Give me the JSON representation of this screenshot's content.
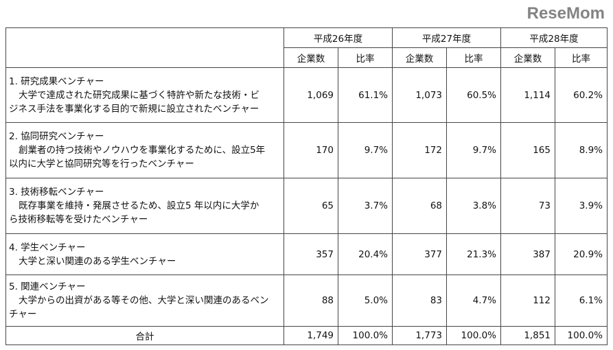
{
  "years": [
    "平成26年度",
    "平成27年度",
    "平成28年度"
  ],
  "subheaders": [
    "企業数",
    "比率"
  ],
  "rows": [
    {
      "title": "1. 研究成果ベンチャー",
      "desc1": "大学で達成された研究成果に基づく特許や新たな技術・ビ",
      "desc2": "ジネス手法を事業化する目的で新規に設立されたベンチャー",
      "values": [
        "1,069",
        "61.1%",
        "1,073",
        "60.5%",
        "1,114",
        "60.2%"
      ]
    },
    {
      "title": "2. 協同研究ベンチャー",
      "desc1": "創業者の持つ技術やノウハウを事業化するために、設立5年",
      "desc2": "以内に大学と協同研究等を行ったベンチャー",
      "values": [
        "170",
        "9.7%",
        "172",
        "9.7%",
        "165",
        "8.9%"
      ]
    },
    {
      "title": "3. 技術移転ベンチャー",
      "desc1": "既存事業を維持・発展させるため、設立5 年以内に大学か",
      "desc2": "ら技術移転等を受けたベンチャー",
      "values": [
        "65",
        "3.7%",
        "68",
        "3.8%",
        "73",
        "3.9%"
      ]
    },
    {
      "title": "4. 学生ベンチャー",
      "desc1": "大学と深い関連のある学生ベンチャー",
      "desc2": "",
      "values": [
        "357",
        "20.4%",
        "377",
        "21.3%",
        "387",
        "20.9%"
      ]
    },
    {
      "title": "5. 関連ベンチャー",
      "desc1": "大学からの出資がある等その他、大学と深い関連のあるベン",
      "desc2": "チャー",
      "values": [
        "88",
        "5.0%",
        "83",
        "4.7%",
        "112",
        "6.1%"
      ]
    }
  ],
  "total": {
    "label": "合計",
    "values": [
      "1,749",
      "100.0%",
      "1,773",
      "100.0%",
      "1,851",
      "100.0%"
    ]
  },
  "watermark": "ReseMom"
}
